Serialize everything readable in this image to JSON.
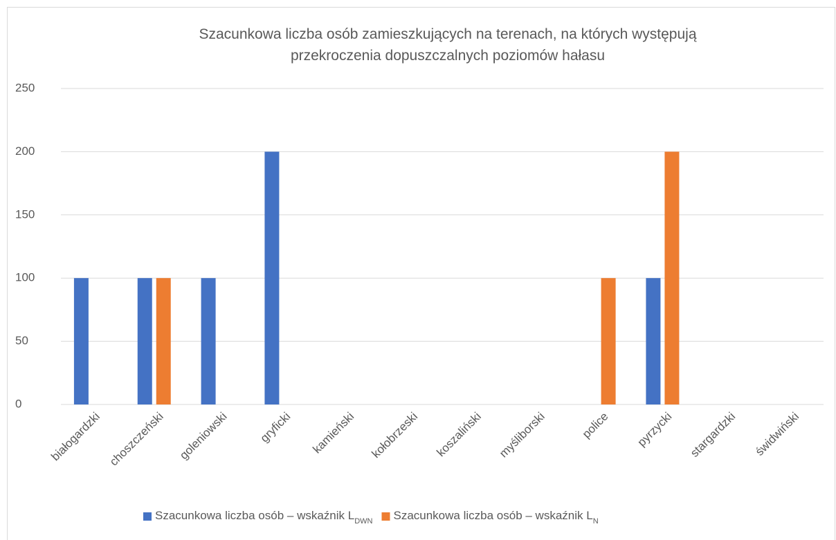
{
  "chart_data": {
    "type": "bar",
    "title": "Szacunkowa liczba osób zamieszkujących na terenach, na których występują przekroczenia dopuszczalnych poziomów hałasu",
    "categories": [
      "białogardzki",
      "choszczeński",
      "goleniowski",
      "gryficki",
      "kamieński",
      "kołobrzeski",
      "koszaliński",
      "myśliborski",
      "police",
      "pyrzycki",
      "stargardzki",
      "świdwiński"
    ],
    "series": [
      {
        "name": "Szacunkowa liczba osób – wskaźnik L",
        "name_subscript": "DWN",
        "color": "#4472c4",
        "values": [
          100,
          100,
          100,
          200,
          0,
          0,
          0,
          0,
          0,
          100,
          0,
          0
        ]
      },
      {
        "name": "Szacunkowa liczba osób – wskaźnik L",
        "name_subscript": "N",
        "color": "#ed7d31",
        "values": [
          0,
          100,
          0,
          0,
          0,
          0,
          0,
          0,
          100,
          200,
          0,
          0
        ]
      }
    ],
    "ylim": [
      0,
      250
    ],
    "yticks": [
      0,
      50,
      100,
      150,
      200,
      250
    ],
    "grid": true,
    "legend": "bottom"
  }
}
